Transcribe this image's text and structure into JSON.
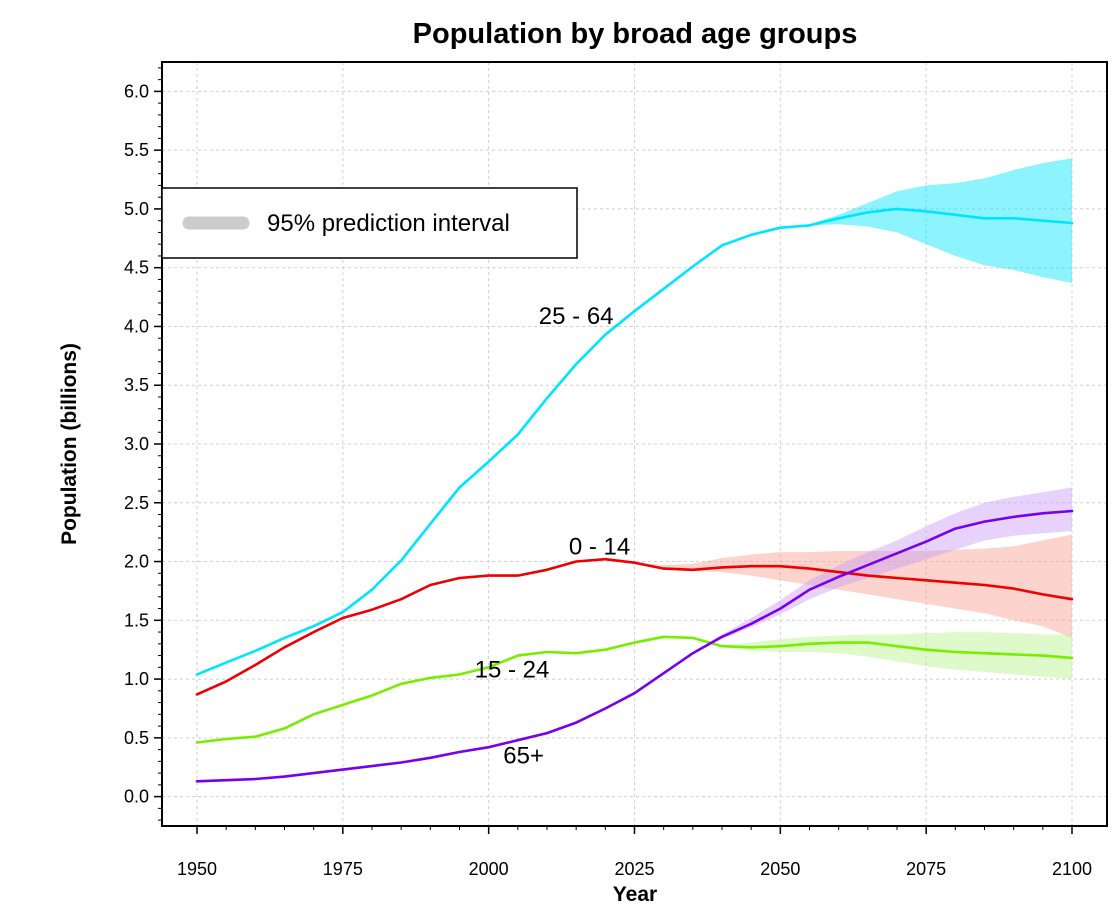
{
  "chart_data": {
    "type": "line",
    "title": "Population by broad age groups",
    "xlabel": "Year",
    "ylabel": "Population (billions)",
    "xlim": [
      1944,
      2106
    ],
    "ylim": [
      -0.25,
      6.25
    ],
    "xticks": [
      "1950",
      "1975",
      "2000",
      "2025",
      "2050",
      "2075",
      "2100"
    ],
    "yticks": [
      "0.0",
      "0.5",
      "1.0",
      "1.5",
      "2.0",
      "2.5",
      "3.0",
      "3.5",
      "4.0",
      "4.5",
      "5.0",
      "5.5",
      "6.0"
    ],
    "grid": true,
    "legend": {
      "position": "top-left",
      "label": "95% prediction interval",
      "color": "#cccccc"
    },
    "series": [
      {
        "name": "25 - 64",
        "color": "#00e5ff",
        "band_color": "#00e5ff",
        "x": [
          1950,
          1955,
          1960,
          1965,
          1970,
          1975,
          1980,
          1985,
          1990,
          1995,
          2000,
          2005,
          2010,
          2015,
          2020,
          2025,
          2030,
          2035,
          2040,
          2045,
          2050,
          2055,
          2060,
          2065,
          2070,
          2075,
          2080,
          2085,
          2090,
          2095,
          2100
        ],
        "values": [
          1.04,
          1.14,
          1.24,
          1.35,
          1.45,
          1.57,
          1.76,
          2.01,
          2.32,
          2.63,
          2.85,
          3.08,
          3.39,
          3.68,
          3.93,
          4.13,
          4.32,
          4.51,
          4.69,
          4.78,
          4.84,
          4.86,
          4.92,
          4.97,
          5.0,
          4.98,
          4.95,
          4.92,
          4.92,
          4.9,
          4.88
        ],
        "band_x": [
          2040,
          2045,
          2050,
          2055,
          2060,
          2065,
          2070,
          2075,
          2080,
          2085,
          2090,
          2095,
          2100
        ],
        "band_low": [
          4.69,
          4.78,
          4.84,
          4.86,
          4.87,
          4.85,
          4.8,
          4.7,
          4.6,
          4.52,
          4.48,
          4.42,
          4.37
        ],
        "band_high": [
          4.69,
          4.78,
          4.84,
          4.87,
          4.95,
          5.05,
          5.15,
          5.2,
          5.22,
          5.26,
          5.33,
          5.39,
          5.43
        ]
      },
      {
        "name": "0 - 14",
        "color": "#ee0000",
        "band_color": "#f8a090",
        "x": [
          1950,
          1955,
          1960,
          1965,
          1970,
          1975,
          1980,
          1985,
          1990,
          1995,
          2000,
          2005,
          2010,
          2015,
          2020,
          2025,
          2030,
          2035,
          2040,
          2045,
          2050,
          2055,
          2060,
          2065,
          2070,
          2075,
          2080,
          2085,
          2090,
          2095,
          2100
        ],
        "values": [
          0.87,
          0.98,
          1.12,
          1.27,
          1.4,
          1.52,
          1.59,
          1.68,
          1.8,
          1.86,
          1.88,
          1.88,
          1.93,
          2.0,
          2.02,
          1.99,
          1.94,
          1.93,
          1.95,
          1.96,
          1.96,
          1.94,
          1.91,
          1.88,
          1.86,
          1.84,
          1.82,
          1.8,
          1.77,
          1.72,
          1.68
        ],
        "band_x": [
          2020,
          2025,
          2030,
          2035,
          2040,
          2045,
          2050,
          2055,
          2060,
          2065,
          2070,
          2075,
          2080,
          2085,
          2090,
          2095,
          2100
        ],
        "band_low": [
          2.02,
          1.99,
          1.94,
          1.92,
          1.91,
          1.88,
          1.84,
          1.8,
          1.76,
          1.72,
          1.68,
          1.64,
          1.6,
          1.56,
          1.5,
          1.45,
          1.35
        ],
        "band_high": [
          2.02,
          1.99,
          1.97,
          1.98,
          2.03,
          2.06,
          2.08,
          2.08,
          2.09,
          2.09,
          2.09,
          2.09,
          2.1,
          2.11,
          2.13,
          2.18,
          2.23
        ]
      },
      {
        "name": "15 - 24",
        "color": "#77ee00",
        "band_color": "#b6f58a",
        "x": [
          1950,
          1955,
          1960,
          1965,
          1970,
          1975,
          1980,
          1985,
          1990,
          1995,
          2000,
          2005,
          2010,
          2015,
          2020,
          2025,
          2030,
          2035,
          2040,
          2045,
          2050,
          2055,
          2060,
          2065,
          2070,
          2075,
          2080,
          2085,
          2090,
          2095,
          2100
        ],
        "values": [
          0.46,
          0.49,
          0.51,
          0.58,
          0.7,
          0.78,
          0.86,
          0.96,
          1.01,
          1.04,
          1.1,
          1.2,
          1.23,
          1.22,
          1.25,
          1.31,
          1.36,
          1.35,
          1.28,
          1.27,
          1.28,
          1.3,
          1.31,
          1.31,
          1.28,
          1.25,
          1.23,
          1.22,
          1.21,
          1.2,
          1.18
        ],
        "band_x": [
          2035,
          2040,
          2045,
          2050,
          2055,
          2060,
          2065,
          2070,
          2075,
          2080,
          2085,
          2090,
          2095,
          2100
        ],
        "band_low": [
          1.35,
          1.27,
          1.24,
          1.23,
          1.23,
          1.22,
          1.19,
          1.15,
          1.11,
          1.08,
          1.06,
          1.04,
          1.02,
          1.0
        ],
        "band_high": [
          1.35,
          1.29,
          1.31,
          1.34,
          1.36,
          1.37,
          1.38,
          1.38,
          1.39,
          1.4,
          1.4,
          1.39,
          1.38,
          1.38
        ]
      },
      {
        "name": "65+",
        "color": "#7700ee",
        "band_color": "#c89bf5",
        "x": [
          1950,
          1955,
          1960,
          1965,
          1970,
          1975,
          1980,
          1985,
          1990,
          1995,
          2000,
          2005,
          2010,
          2015,
          2020,
          2025,
          2030,
          2035,
          2040,
          2045,
          2050,
          2055,
          2060,
          2065,
          2070,
          2075,
          2080,
          2085,
          2090,
          2095,
          2100
        ],
        "values": [
          0.13,
          0.14,
          0.15,
          0.17,
          0.2,
          0.23,
          0.26,
          0.29,
          0.33,
          0.38,
          0.42,
          0.48,
          0.54,
          0.63,
          0.75,
          0.88,
          1.05,
          1.22,
          1.36,
          1.47,
          1.6,
          1.76,
          1.87,
          1.97,
          2.07,
          2.17,
          2.28,
          2.34,
          2.38,
          2.41,
          2.43
        ],
        "band_x": [
          2035,
          2040,
          2045,
          2050,
          2055,
          2060,
          2065,
          2070,
          2075,
          2080,
          2085,
          2090,
          2095,
          2100
        ],
        "band_low": [
          1.22,
          1.34,
          1.44,
          1.55,
          1.68,
          1.78,
          1.86,
          1.94,
          2.02,
          2.1,
          2.18,
          2.22,
          2.24,
          2.26
        ],
        "band_high": [
          1.22,
          1.38,
          1.52,
          1.67,
          1.84,
          1.97,
          2.08,
          2.18,
          2.3,
          2.41,
          2.5,
          2.55,
          2.59,
          2.63
        ]
      }
    ],
    "annotations": [
      {
        "text": "25 - 64",
        "x": 2015,
        "y": 4.09
      },
      {
        "text": "0 - 14",
        "x": 2019,
        "y": 2.13
      },
      {
        "text": "15 - 24",
        "x": 2004,
        "y": 1.08
      },
      {
        "text": "65+",
        "x": 2006,
        "y": 0.35
      }
    ]
  }
}
